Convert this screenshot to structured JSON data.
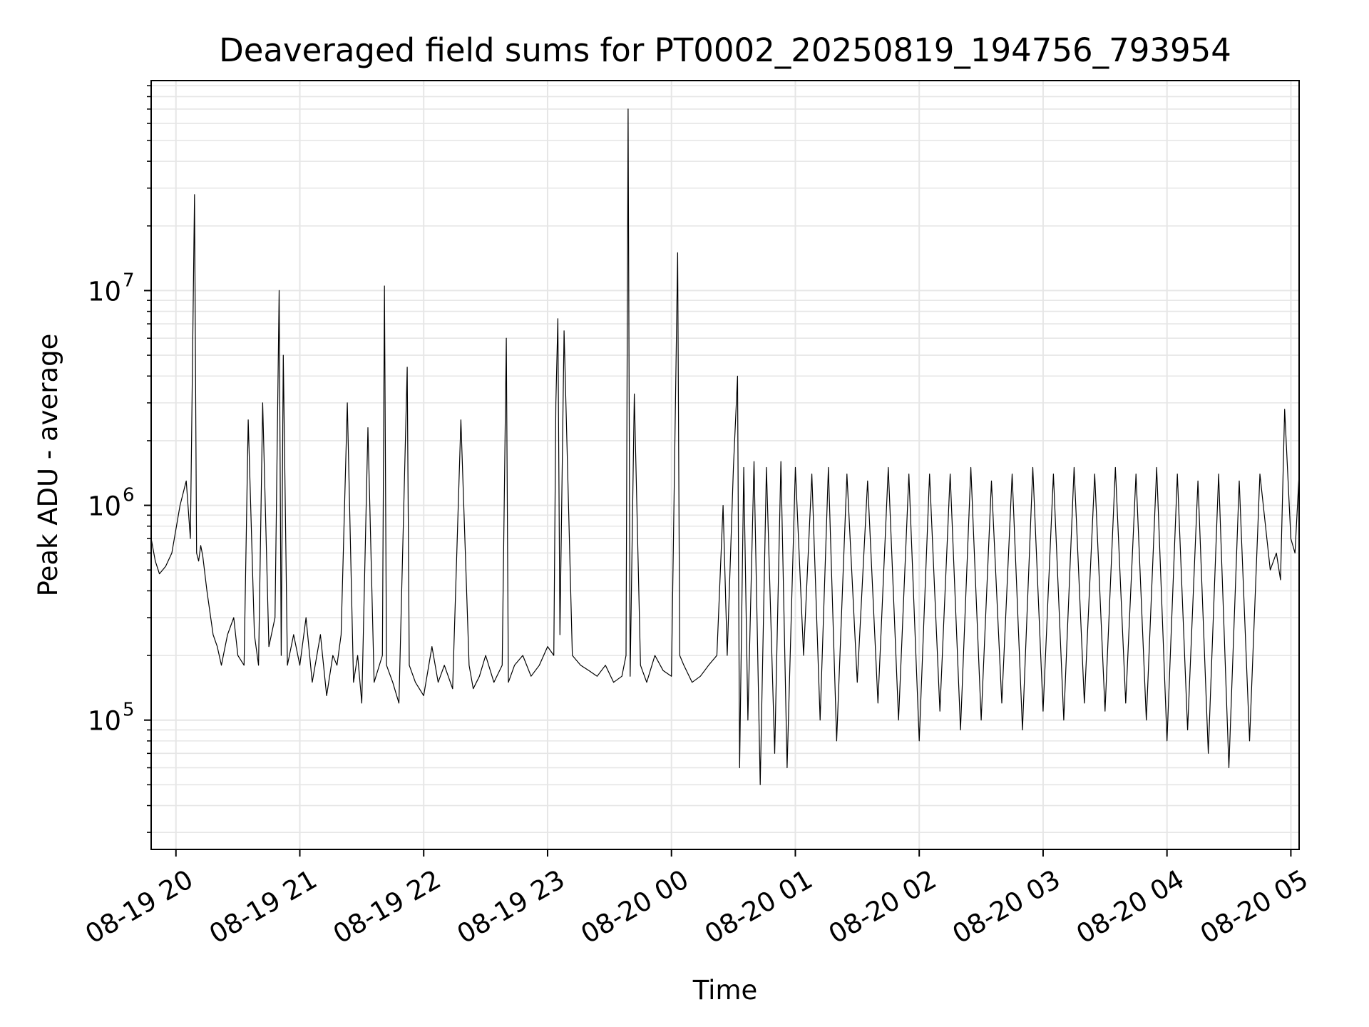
{
  "chart_data": {
    "type": "line",
    "title": "Deaveraged field sums for PT0002_20250819_194756_793954",
    "xlabel": "Time",
    "ylabel": "Peak ADU - average",
    "yscale": "log",
    "ylim": [
      25000,
      95000000
    ],
    "xlim": [
      "2025-08-19 19:48",
      "2025-08-20 05:04"
    ],
    "grid": true,
    "line_color": "#000000",
    "grid_color": "#e6e6e6",
    "x_ticks": [
      {
        "value": "2025-08-19 20:00",
        "label": "08-19 20"
      },
      {
        "value": "2025-08-19 21:00",
        "label": "08-19 21"
      },
      {
        "value": "2025-08-19 22:00",
        "label": "08-19 22"
      },
      {
        "value": "2025-08-19 23:00",
        "label": "08-19 23"
      },
      {
        "value": "2025-08-20 00:00",
        "label": "08-20 00"
      },
      {
        "value": "2025-08-20 01:00",
        "label": "08-20 01"
      },
      {
        "value": "2025-08-20 02:00",
        "label": "08-20 02"
      },
      {
        "value": "2025-08-20 03:00",
        "label": "08-20 03"
      },
      {
        "value": "2025-08-20 04:00",
        "label": "08-20 04"
      },
      {
        "value": "2025-08-20 05:00",
        "label": "08-20 05"
      }
    ],
    "y_ticks": [
      {
        "value": 100000,
        "base": "10",
        "exp": "5"
      },
      {
        "value": 1000000,
        "base": "10",
        "exp": "6"
      },
      {
        "value": 10000000,
        "base": "10",
        "exp": "7"
      }
    ],
    "series": [
      {
        "x": [
          "2025-08-19 19:48",
          "2025-08-19 19:50",
          "2025-08-19 19:52",
          "2025-08-19 19:55",
          "2025-08-19 19:58",
          "2025-08-19 20:02",
          "2025-08-19 20:05",
          "2025-08-19 20:07",
          "2025-08-19 20:09",
          "2025-08-19 20:10",
          "2025-08-19 20:11",
          "2025-08-19 20:12",
          "2025-08-19 20:13",
          "2025-08-19 20:15",
          "2025-08-19 20:18",
          "2025-08-19 20:20",
          "2025-08-19 20:22",
          "2025-08-19 20:25",
          "2025-08-19 20:28",
          "2025-08-19 20:30",
          "2025-08-19 20:33",
          "2025-08-19 20:35",
          "2025-08-19 20:38",
          "2025-08-19 20:40",
          "2025-08-19 20:42",
          "2025-08-19 20:45",
          "2025-08-19 20:48",
          "2025-08-19 20:50",
          "2025-08-19 20:51",
          "2025-08-19 20:52",
          "2025-08-19 20:54",
          "2025-08-19 20:57",
          "2025-08-19 21:00",
          "2025-08-19 21:03",
          "2025-08-19 21:06",
          "2025-08-19 21:10",
          "2025-08-19 21:13",
          "2025-08-19 21:16",
          "2025-08-19 21:18",
          "2025-08-19 21:20",
          "2025-08-19 21:23",
          "2025-08-19 21:26",
          "2025-08-19 21:28",
          "2025-08-19 21:30",
          "2025-08-19 21:33",
          "2025-08-19 21:36",
          "2025-08-19 21:40",
          "2025-08-19 21:41",
          "2025-08-19 21:42",
          "2025-08-19 21:45",
          "2025-08-19 21:48",
          "2025-08-19 21:52",
          "2025-08-19 21:53",
          "2025-08-19 21:56",
          "2025-08-19 22:00",
          "2025-08-19 22:04",
          "2025-08-19 22:07",
          "2025-08-19 22:10",
          "2025-08-19 22:14",
          "2025-08-19 22:18",
          "2025-08-19 22:22",
          "2025-08-19 22:24",
          "2025-08-19 22:27",
          "2025-08-19 22:30",
          "2025-08-19 22:34",
          "2025-08-19 22:38",
          "2025-08-19 22:40",
          "2025-08-19 22:41",
          "2025-08-19 22:44",
          "2025-08-19 22:48",
          "2025-08-19 22:52",
          "2025-08-19 22:56",
          "2025-08-19 23:00",
          "2025-08-19 23:03",
          "2025-08-19 23:04",
          "2025-08-19 23:05",
          "2025-08-19 23:06",
          "2025-08-19 23:08",
          "2025-08-19 23:12",
          "2025-08-19 23:16",
          "2025-08-19 23:20",
          "2025-08-19 23:24",
          "2025-08-19 23:28",
          "2025-08-19 23:32",
          "2025-08-19 23:36",
          "2025-08-19 23:38",
          "2025-08-19 23:39",
          "2025-08-19 23:40",
          "2025-08-19 23:42",
          "2025-08-19 23:45",
          "2025-08-19 23:48",
          "2025-08-19 23:52",
          "2025-08-19 23:56",
          "2025-08-20 00:00",
          "2025-08-20 00:03",
          "2025-08-20 00:04",
          "2025-08-20 00:06",
          "2025-08-20 00:10",
          "2025-08-20 00:14",
          "2025-08-20 00:18",
          "2025-08-20 00:22",
          "2025-08-20 00:25",
          "2025-08-20 00:27",
          "2025-08-20 00:30",
          "2025-08-20 00:32",
          "2025-08-20 00:33",
          "2025-08-20 00:35",
          "2025-08-20 00:37",
          "2025-08-20 00:40",
          "2025-08-20 00:43",
          "2025-08-20 00:46",
          "2025-08-20 00:50",
          "2025-08-20 00:53",
          "2025-08-20 00:56",
          "2025-08-20 01:00",
          "2025-08-20 01:04",
          "2025-08-20 01:08",
          "2025-08-20 01:12",
          "2025-08-20 01:16",
          "2025-08-20 01:20",
          "2025-08-20 01:25",
          "2025-08-20 01:30",
          "2025-08-20 01:35",
          "2025-08-20 01:40",
          "2025-08-20 01:45",
          "2025-08-20 01:50",
          "2025-08-20 01:55",
          "2025-08-20 02:00",
          "2025-08-20 02:05",
          "2025-08-20 02:10",
          "2025-08-20 02:15",
          "2025-08-20 02:20",
          "2025-08-20 02:25",
          "2025-08-20 02:30",
          "2025-08-20 02:35",
          "2025-08-20 02:40",
          "2025-08-20 02:45",
          "2025-08-20 02:50",
          "2025-08-20 02:55",
          "2025-08-20 03:00",
          "2025-08-20 03:05",
          "2025-08-20 03:10",
          "2025-08-20 03:15",
          "2025-08-20 03:20",
          "2025-08-20 03:25",
          "2025-08-20 03:30",
          "2025-08-20 03:35",
          "2025-08-20 03:40",
          "2025-08-20 03:45",
          "2025-08-20 03:50",
          "2025-08-20 03:55",
          "2025-08-20 04:00",
          "2025-08-20 04:05",
          "2025-08-20 04:10",
          "2025-08-20 04:15",
          "2025-08-20 04:20",
          "2025-08-20 04:25",
          "2025-08-20 04:30",
          "2025-08-20 04:35",
          "2025-08-20 04:40",
          "2025-08-20 04:45",
          "2025-08-20 04:50",
          "2025-08-20 04:53",
          "2025-08-20 04:55",
          "2025-08-20 04:57",
          "2025-08-20 05:00",
          "2025-08-20 05:02",
          "2025-08-20 05:04"
        ],
        "y": [
          700000,
          550000,
          480000,
          520000,
          600000,
          1000000,
          1300000,
          700000,
          28000000,
          600000,
          550000,
          650000,
          580000,
          400000,
          250000,
          220000,
          180000,
          250000,
          300000,
          200000,
          180000,
          2500000,
          250000,
          180000,
          3000000,
          220000,
          300000,
          10000000,
          200000,
          5000000,
          180000,
          250000,
          180000,
          300000,
          150000,
          250000,
          130000,
          200000,
          180000,
          250000,
          3000000,
          150000,
          200000,
          120000,
          2300000,
          150000,
          200000,
          10500000,
          180000,
          150000,
          120000,
          4400000,
          180000,
          150000,
          130000,
          220000,
          150000,
          180000,
          140000,
          2500000,
          180000,
          140000,
          160000,
          200000,
          150000,
          180000,
          6000000,
          150000,
          180000,
          200000,
          160000,
          180000,
          220000,
          200000,
          3000000,
          7400000,
          250000,
          6500000,
          200000,
          180000,
          170000,
          160000,
          180000,
          150000,
          160000,
          200000,
          70000000,
          160000,
          3300000,
          180000,
          150000,
          200000,
          170000,
          160000,
          15000000,
          200000,
          180000,
          150000,
          160000,
          180000,
          200000,
          1000000,
          200000,
          1500000,
          4000000,
          60000,
          1500000,
          100000,
          1600000,
          50000,
          1500000,
          70000,
          1600000,
          60000,
          1500000,
          200000,
          1400000,
          100000,
          1500000,
          80000,
          1400000,
          150000,
          1300000,
          120000,
          1500000,
          100000,
          1400000,
          80000,
          1400000,
          110000,
          1400000,
          90000,
          1500000,
          100000,
          1300000,
          120000,
          1400000,
          90000,
          1500000,
          110000,
          1400000,
          100000,
          1500000,
          120000,
          1400000,
          110000,
          1500000,
          120000,
          1400000,
          100000,
          1500000,
          80000,
          1400000,
          90000,
          1300000,
          70000,
          1400000,
          60000,
          1300000,
          80000,
          1400000,
          500000,
          600000,
          450000,
          2800000,
          700000,
          600000,
          1400000
        ]
      }
    ]
  }
}
